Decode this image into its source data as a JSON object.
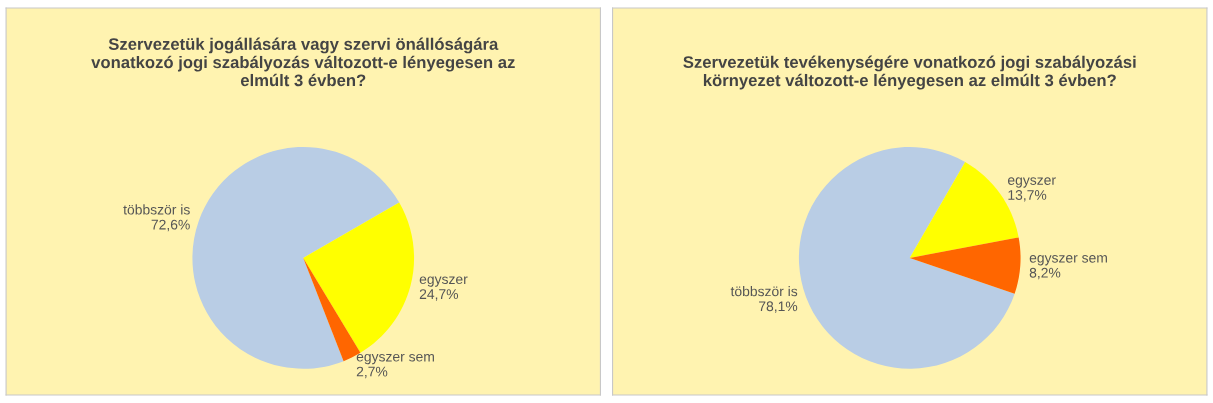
{
  "chart_data": [
    {
      "type": "pie",
      "title": "Szervezetük jogállására vagy szervi önállóságára\nvonatkozó jogi szabályozás változott-e lényegesen az\nelmúlt 3 évben?",
      "categories": [
        "többször is",
        "egyszer",
        "egyszer sem"
      ],
      "values": [
        72.6,
        24.7,
        2.7
      ],
      "value_labels": [
        "72,6%",
        "24,7%",
        "2,7%"
      ],
      "colors": [
        "#b9cde5",
        "#ffff00",
        "#ff6600"
      ]
    },
    {
      "type": "pie",
      "title": "Szervezetük tevékenységére vonatkozó jogi szabályozási\nkörnyezet változott-e lényegesen az elmúlt 3 évben?",
      "categories": [
        "többször is",
        "egyszer",
        "egyszer sem"
      ],
      "values": [
        78.1,
        13.7,
        8.2
      ],
      "value_labels": [
        "78,1%",
        "13,7%",
        "8,2%"
      ],
      "colors": [
        "#b9cde5",
        "#ffff00",
        "#ff6600"
      ]
    }
  ]
}
